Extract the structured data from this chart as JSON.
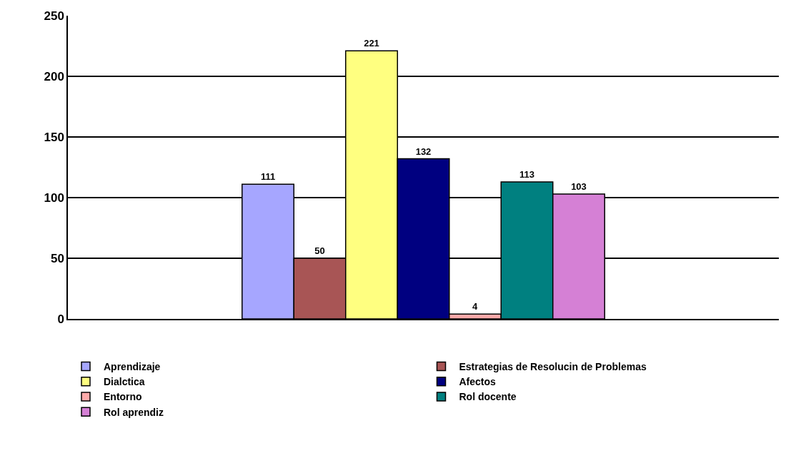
{
  "chart_data": {
    "type": "bar",
    "categories": [
      null
    ],
    "series": [
      {
        "name": "Aprendizaje",
        "color": "#a6a6ff",
        "values": [
          111
        ]
      },
      {
        "name": "Estrategias de Resolucin de Problemas",
        "color": "#a85555",
        "values": [
          50
        ]
      },
      {
        "name": "Dialctica",
        "color": "#ffff80",
        "values": [
          221
        ]
      },
      {
        "name": "Afectos",
        "color": "#000080",
        "values": [
          132
        ]
      },
      {
        "name": "Entorno",
        "color": "#ffaaaa",
        "values": [
          4
        ]
      },
      {
        "name": "Rol docente",
        "color": "#008080",
        "values": [
          113
        ]
      },
      {
        "name": "Rol aprendiz",
        "color": "#d580d5",
        "values": [
          103
        ]
      }
    ],
    "ylim": [
      0,
      250
    ],
    "yticks": [
      0,
      50,
      100,
      150,
      200,
      250
    ],
    "grid": "y",
    "legend": "bottom",
    "data_labels": true
  }
}
